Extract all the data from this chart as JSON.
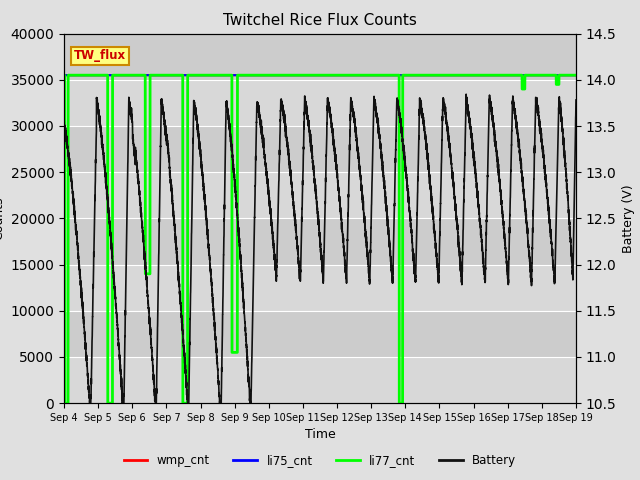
{
  "title": "Twitchel Rice Flux Counts",
  "xlabel": "Time",
  "ylabel_left": "Counts",
  "ylabel_right": "Battery (V)",
  "ylim_left": [
    0,
    40000
  ],
  "ylim_right": [
    10.5,
    14.5
  ],
  "yticks_left": [
    0,
    5000,
    10000,
    15000,
    20000,
    25000,
    30000,
    35000,
    40000
  ],
  "yticks_right": [
    10.5,
    11.0,
    11.5,
    12.0,
    12.5,
    13.0,
    13.5,
    14.0,
    14.5
  ],
  "fig_bg": "#e0e0e0",
  "plot_bg": "#d4d4d4",
  "grid_color": "#ffffff",
  "annotation_text": "TW_flux",
  "annotation_fgcolor": "#cc0000",
  "annotation_bgcolor": "#ffff80",
  "annotation_edgecolor": "#cc8800",
  "xtick_labels": [
    "Sep 4",
    "Sep 5",
    "Sep 6",
    "Sep 7",
    "Sep 8",
    "Sep 9",
    "Sep 10",
    "Sep 11",
    "Sep 12",
    "Sep 13",
    "Sep 14",
    "Sep 15",
    "Sep 16",
    "Sep 17",
    "Sep 18",
    "Sep 19"
  ],
  "li77_high": 35500,
  "li77_low": 5500,
  "wmp_level": 35500,
  "li75_level": 35500,
  "color_red": "#ff0000",
  "color_blue": "#0000ff",
  "color_green": "#00ff00",
  "color_black": "#111111",
  "legend_labels": [
    "wmp_cnt",
    "li75_cnt",
    "li77_cnt",
    "Battery"
  ]
}
